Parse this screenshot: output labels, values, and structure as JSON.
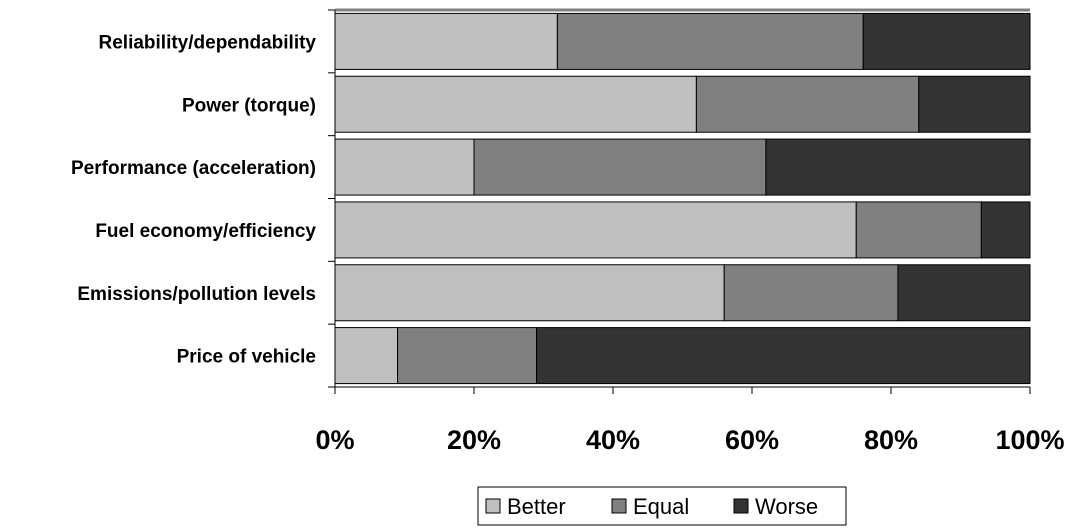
{
  "chart_data": {
    "type": "bar",
    "orientation": "horizontal",
    "stacked": "percent",
    "categories": [
      "Reliability/dependability",
      "Power (torque)",
      "Performance (acceleration)",
      "Fuel economy/efficiency",
      "Emissions/pollution levels",
      "Price of vehicle"
    ],
    "series": [
      {
        "name": "Better",
        "values": [
          32,
          52,
          20,
          75,
          56,
          9
        ]
      },
      {
        "name": "Equal",
        "values": [
          44,
          32,
          42,
          18,
          25,
          20
        ]
      },
      {
        "name": "Worse",
        "values": [
          24,
          16,
          38,
          7,
          19,
          71
        ]
      }
    ],
    "colors": {
      "Better": "#c0c0c0",
      "Equal": "#808080",
      "Worse": "#333333"
    },
    "xlim": [
      0,
      100
    ],
    "xticks": [
      "0%",
      "20%",
      "40%",
      "60%",
      "80%",
      "100%"
    ],
    "legend_position": "bottom",
    "grid": false
  }
}
